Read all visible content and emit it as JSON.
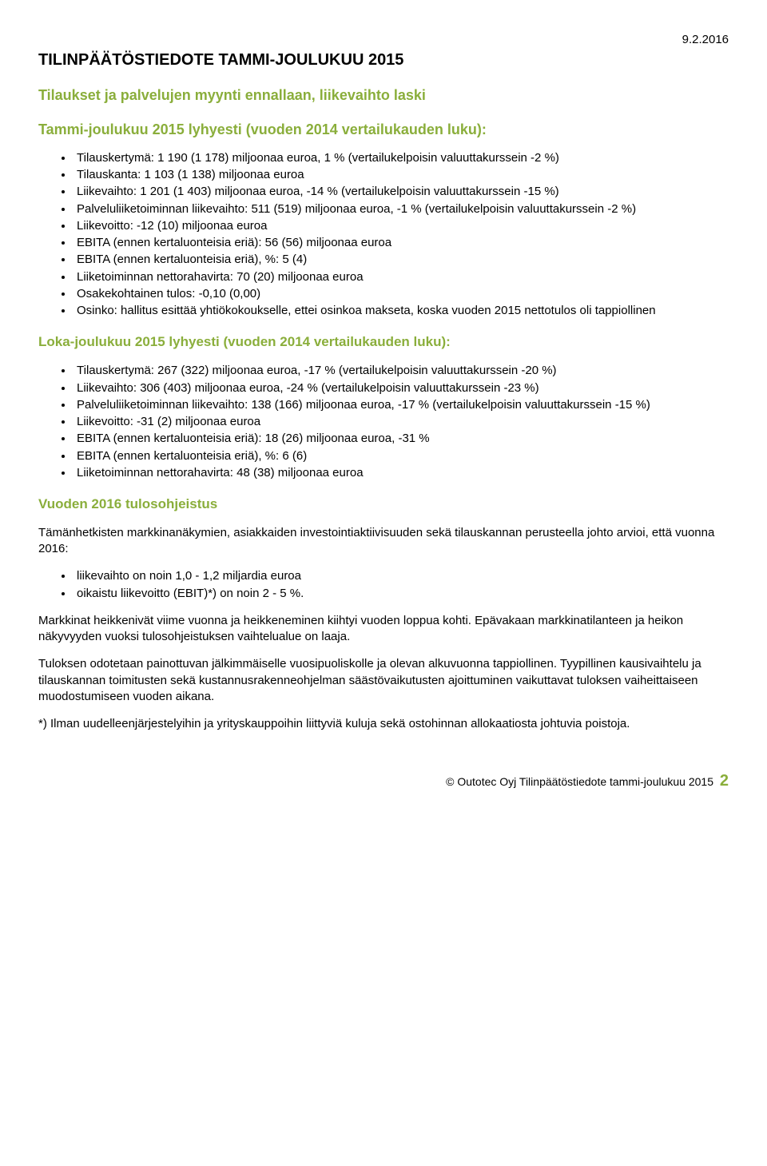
{
  "date": "9.2.2016",
  "main_title": "TILINPÄÄTÖSTIEDOTE TAMMI-JOULUKUU 2015",
  "sub1": "Tilaukset ja palvelujen myynti ennallaan, liikevaihto laski",
  "sub2": "Tammi-joulukuu 2015 lyhyesti (vuoden 2014 vertailukauden luku):",
  "list1": [
    "Tilauskertymä: 1 190 (1 178) miljoonaa euroa, 1 % (vertailukelpoisin valuuttakurssein -2 %)",
    "Tilauskanta: 1 103 (1 138) miljoonaa euroa",
    "Liikevaihto: 1 201 (1 403) miljoonaa euroa, -14 % (vertailukelpoisin valuuttakurssein -15 %)",
    "Palveluliiketoiminnan liikevaihto: 511 (519) miljoonaa euroa, -1 % (vertailukelpoisin valuuttakurssein -2 %)",
    "Liikevoitto: -12 (10) miljoonaa euroa",
    "EBITA (ennen kertaluonteisia eriä): 56 (56) miljoonaa euroa",
    "EBITA (ennen kertaluonteisia eriä), %: 5 (4)",
    "Liiketoiminnan nettorahavirta: 70 (20) miljoonaa euroa",
    "Osakekohtainen tulos: -0,10 (0,00)",
    "Osinko: hallitus esittää yhtiökokoukselle, ettei osinkoa makseta, koska vuoden 2015 nettotulos oli tappiollinen"
  ],
  "sub3": "Loka-joulukuu 2015 lyhyesti (vuoden 2014 vertailukauden luku):",
  "list2": [
    "Tilauskertymä: 267 (322) miljoonaa euroa, -17 % (vertailukelpoisin valuuttakurssein -20 %)",
    "Liikevaihto: 306 (403) miljoonaa euroa, -24 % (vertailukelpoisin valuuttakurssein -23 %)",
    "Palveluliiketoiminnan liikevaihto: 138 (166) miljoonaa euroa, -17 % (vertailukelpoisin valuuttakurssein -15 %)",
    "Liikevoitto: -31 (2) miljoonaa euroa",
    "EBITA (ennen kertaluonteisia eriä): 18 (26) miljoonaa euroa, -31 %",
    "EBITA (ennen kertaluonteisia eriä), %: 6 (6)",
    "Liiketoiminnan nettorahavirta: 48 (38) miljoonaa euroa"
  ],
  "sub4": "Vuoden 2016 tulosohjeistus",
  "para1": "Tämänhetkisten markkinanäkymien, asiakkaiden investointiaktiivisuuden sekä tilauskannan perusteella johto arvioi, että vuonna 2016:",
  "list3": [
    "liikevaihto on noin 1,0 - 1,2 miljardia euroa",
    "oikaistu liikevoitto (EBIT)*) on noin 2 - 5 %."
  ],
  "para2": "Markkinat heikkenivät viime vuonna ja heikkeneminen kiihtyi vuoden loppua kohti. Epävakaan markkinatilanteen ja heikon näkyvyyden vuoksi tulosohjeistuksen vaihtelualue on laaja.",
  "para3": "Tuloksen odotetaan painottuvan jälkimmäiselle vuosipuoliskolle ja olevan alkuvuonna tappiollinen. Tyypillinen kausivaihtelu ja tilauskannan toimitusten sekä kustannusrakenneohjelman säästövaikutusten ajoittuminen vaikuttavat tuloksen vaiheittaiseen muodostumiseen vuoden aikana.",
  "para4": "*) Ilman uudelleenjärjestelyihin ja yrityskauppoihin liittyviä kuluja sekä ostohinnan allokaatiosta johtuvia poistoja.",
  "footer_text": "© Outotec Oyj   Tilinpäätöstiedote tammi-joulukuu 2015",
  "footer_page": "2",
  "colors": {
    "accent": "#8aae3b",
    "text": "#000000",
    "background": "#ffffff"
  }
}
